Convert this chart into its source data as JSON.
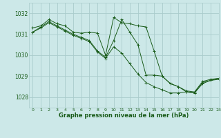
{
  "title": "Graphe pression niveau de la mer (hPa)",
  "bg_color": "#cce8e8",
  "grid_color": "#aacccc",
  "line_color": "#1a5c1a",
  "marker": "+",
  "xlim": [
    -0.5,
    23
  ],
  "ylim": [
    1027.5,
    1032.5
  ],
  "yticks": [
    1028,
    1029,
    1030,
    1031,
    1032
  ],
  "xticks": [
    0,
    1,
    2,
    3,
    4,
    5,
    6,
    7,
    8,
    9,
    10,
    11,
    12,
    13,
    14,
    15,
    16,
    17,
    18,
    19,
    20,
    21,
    22,
    23
  ],
  "series": [
    {
      "x": [
        0,
        1,
        2,
        3,
        4,
        5,
        6,
        7,
        8,
        9,
        10,
        11,
        12,
        13,
        14,
        15,
        16,
        17,
        18,
        19,
        20,
        21,
        22,
        23
      ],
      "y": [
        1031.3,
        1031.4,
        1031.7,
        1031.5,
        1031.4,
        1031.1,
        1031.05,
        1031.1,
        1031.05,
        1030.0,
        1031.8,
        1031.55,
        1031.5,
        1031.4,
        1031.35,
        1030.2,
        1029.0,
        1028.65,
        1028.5,
        1028.3,
        1028.25,
        1028.75,
        1028.85,
        1028.9
      ]
    },
    {
      "x": [
        0,
        1,
        2,
        3,
        4,
        5,
        6,
        7,
        8,
        9,
        10,
        11,
        12,
        13,
        14,
        15,
        16,
        17,
        18,
        19,
        20,
        21,
        22,
        23
      ],
      "y": [
        1031.1,
        1031.35,
        1031.6,
        1031.4,
        1031.2,
        1031.0,
        1030.85,
        1030.7,
        1030.2,
        1029.9,
        1030.7,
        1031.7,
        1031.1,
        1030.5,
        1029.05,
        1029.05,
        1029.0,
        1028.65,
        1028.5,
        1028.25,
        1028.2,
        1028.7,
        1028.8,
        1028.9
      ]
    },
    {
      "x": [
        0,
        1,
        2,
        3,
        4,
        5,
        6,
        7,
        8,
        9,
        10,
        11,
        12,
        13,
        14,
        15,
        16,
        17,
        18,
        19,
        20,
        21,
        22,
        23
      ],
      "y": [
        1031.1,
        1031.3,
        1031.55,
        1031.35,
        1031.15,
        1030.95,
        1030.8,
        1030.65,
        1030.15,
        1029.85,
        1030.4,
        1030.1,
        1029.6,
        1029.1,
        1028.7,
        1028.5,
        1028.35,
        1028.2,
        1028.2,
        1028.25,
        1028.2,
        1028.65,
        1028.8,
        1028.85
      ]
    }
  ]
}
